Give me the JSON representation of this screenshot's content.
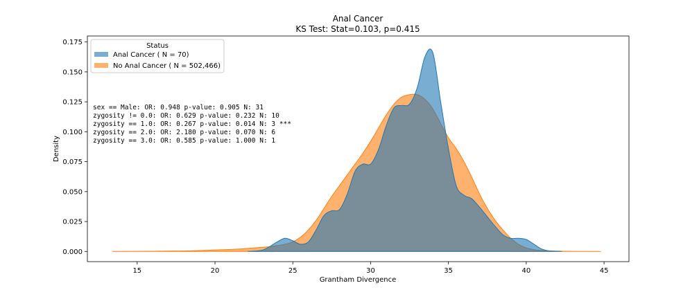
{
  "chart_data": {
    "type": "area",
    "title": "Anal Cancer",
    "subtitle": "KS Test: Stat=0.103, p=0.415",
    "xlabel": "Grantham Divergence",
    "ylabel": "Density",
    "xlim": [
      11.8,
      46.6
    ],
    "ylim": [
      -0.0085,
      0.18
    ],
    "x_ticks": [
      15,
      20,
      25,
      30,
      35,
      40,
      45
    ],
    "y_ticks": [
      0.0,
      0.025,
      0.05,
      0.075,
      0.1,
      0.125,
      0.15,
      0.175
    ],
    "x_tick_labels": [
      "15",
      "20",
      "25",
      "30",
      "35",
      "40",
      "45"
    ],
    "y_tick_labels": [
      "0.000",
      "0.025",
      "0.050",
      "0.075",
      "0.100",
      "0.125",
      "0.150",
      "0.175"
    ],
    "legend": {
      "title": "Status",
      "placement": "top-left",
      "entries": [
        "Anal Cancer ( N = 70)",
        "No Anal Cancer ( N = 502,466)"
      ]
    },
    "annotations": [
      "sex == Male: OR: 0.948 p-value: 0.905 N: 31",
      "zygosity != 0.0: OR: 0.629 p-value: 0.232 N: 10",
      "zygosity == 1.0: OR: 0.267 p-value: 0.014 N: 3 ***",
      "zygosity == 2.0: OR: 2.180 p-value: 0.070 N: 6",
      "zygosity == 3.0: OR: 0.585 p-value: 1.000 N: 1"
    ],
    "series": [
      {
        "name": "No Anal Cancer ( N = 502,466)",
        "color": "#ff7f0e",
        "x": [
          13.4,
          16.0,
          18.0,
          19.5,
          20.5,
          21.5,
          22.5,
          23.5,
          24.5,
          25.0,
          25.5,
          26.0,
          26.5,
          27.0,
          27.5,
          28.0,
          28.5,
          29.0,
          29.5,
          30.0,
          30.5,
          31.0,
          31.5,
          32.0,
          32.5,
          33.0,
          33.5,
          34.0,
          34.5,
          35.0,
          35.5,
          36.0,
          36.5,
          37.0,
          37.5,
          38.0,
          38.5,
          39.0,
          39.5,
          40.0,
          40.5,
          41.0,
          42.0,
          43.0,
          44.8
        ],
        "y": [
          0.0,
          0.0002,
          0.0004,
          0.001,
          0.0015,
          0.002,
          0.003,
          0.004,
          0.006,
          0.008,
          0.012,
          0.018,
          0.026,
          0.036,
          0.046,
          0.055,
          0.064,
          0.073,
          0.082,
          0.092,
          0.103,
          0.114,
          0.123,
          0.129,
          0.131,
          0.131,
          0.127,
          0.119,
          0.107,
          0.095,
          0.086,
          0.075,
          0.062,
          0.048,
          0.036,
          0.026,
          0.018,
          0.011,
          0.006,
          0.003,
          0.0015,
          0.0008,
          0.0003,
          0.0001,
          0.0
        ]
      },
      {
        "name": "Anal Cancer ( N = 70)",
        "color": "#1f77b4",
        "x": [
          22.1,
          23.0,
          23.5,
          24.0,
          24.5,
          25.0,
          25.5,
          26.0,
          26.5,
          27.0,
          27.5,
          28.0,
          28.5,
          29.0,
          29.5,
          30.0,
          30.5,
          31.0,
          31.5,
          32.0,
          32.5,
          33.0,
          33.5,
          34.0,
          34.5,
          35.0,
          35.5,
          36.0,
          36.5,
          37.0,
          37.5,
          38.0,
          38.5,
          39.0,
          39.5,
          40.0,
          40.5,
          41.0,
          41.5,
          42.3
        ],
        "y": [
          0.0,
          0.001,
          0.004,
          0.008,
          0.011,
          0.009,
          0.006,
          0.008,
          0.018,
          0.03,
          0.034,
          0.035,
          0.048,
          0.067,
          0.073,
          0.073,
          0.085,
          0.105,
          0.12,
          0.122,
          0.123,
          0.137,
          0.163,
          0.166,
          0.125,
          0.086,
          0.055,
          0.047,
          0.044,
          0.037,
          0.029,
          0.021,
          0.014,
          0.011,
          0.011,
          0.01,
          0.006,
          0.002,
          0.0005,
          0.0
        ]
      }
    ]
  }
}
